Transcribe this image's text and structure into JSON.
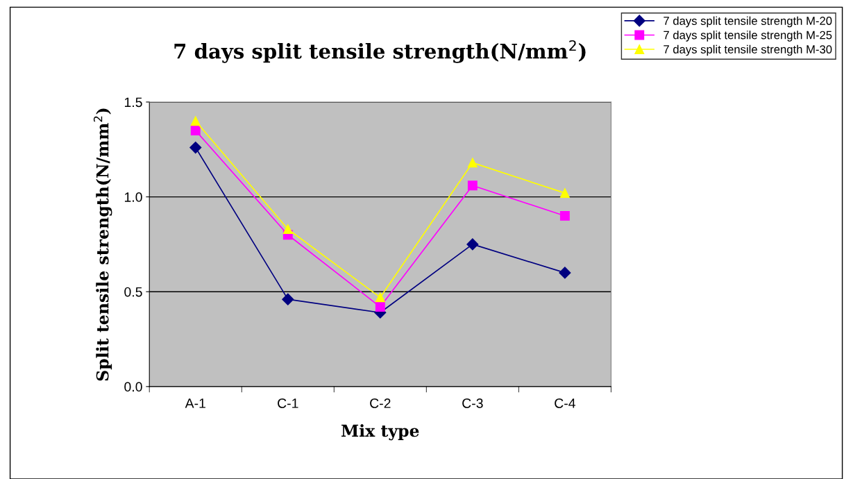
{
  "chart_data": {
    "type": "line",
    "title": "7 days split tensile strength(N/mm$^{2}$)",
    "xlabel": "Mix type",
    "ylabel": "Split tensile strength(N/mm$^{2}$)",
    "categories": [
      "A-1",
      "C-1",
      "C-2",
      "C-3",
      "C-4"
    ],
    "series": [
      {
        "name": "7 days split tensile strength M-20",
        "color": "#000080",
        "marker": "diamond",
        "values": [
          1.26,
          0.46,
          0.39,
          0.75,
          0.6
        ]
      },
      {
        "name": "7 days split tensile strength M-25",
        "color": "#ff00ff",
        "marker": "square",
        "values": [
          1.35,
          0.8,
          0.42,
          1.06,
          0.9
        ]
      },
      {
        "name": "7 days split tensile strength M-30",
        "color": "#ffff00",
        "marker": "triangle",
        "values": [
          1.4,
          0.83,
          0.47,
          1.18,
          1.02
        ]
      }
    ],
    "ylim": [
      0,
      1.5
    ],
    "yticks": [
      {
        "value": 0,
        "label": "0.0"
      },
      {
        "value": 0.5,
        "label": "0.5"
      },
      {
        "value": 1,
        "label": "1.0"
      },
      {
        "value": 1.5,
        "label": "1.5"
      }
    ],
    "grid": "y",
    "legend": "top right",
    "line_style": "solid"
  }
}
